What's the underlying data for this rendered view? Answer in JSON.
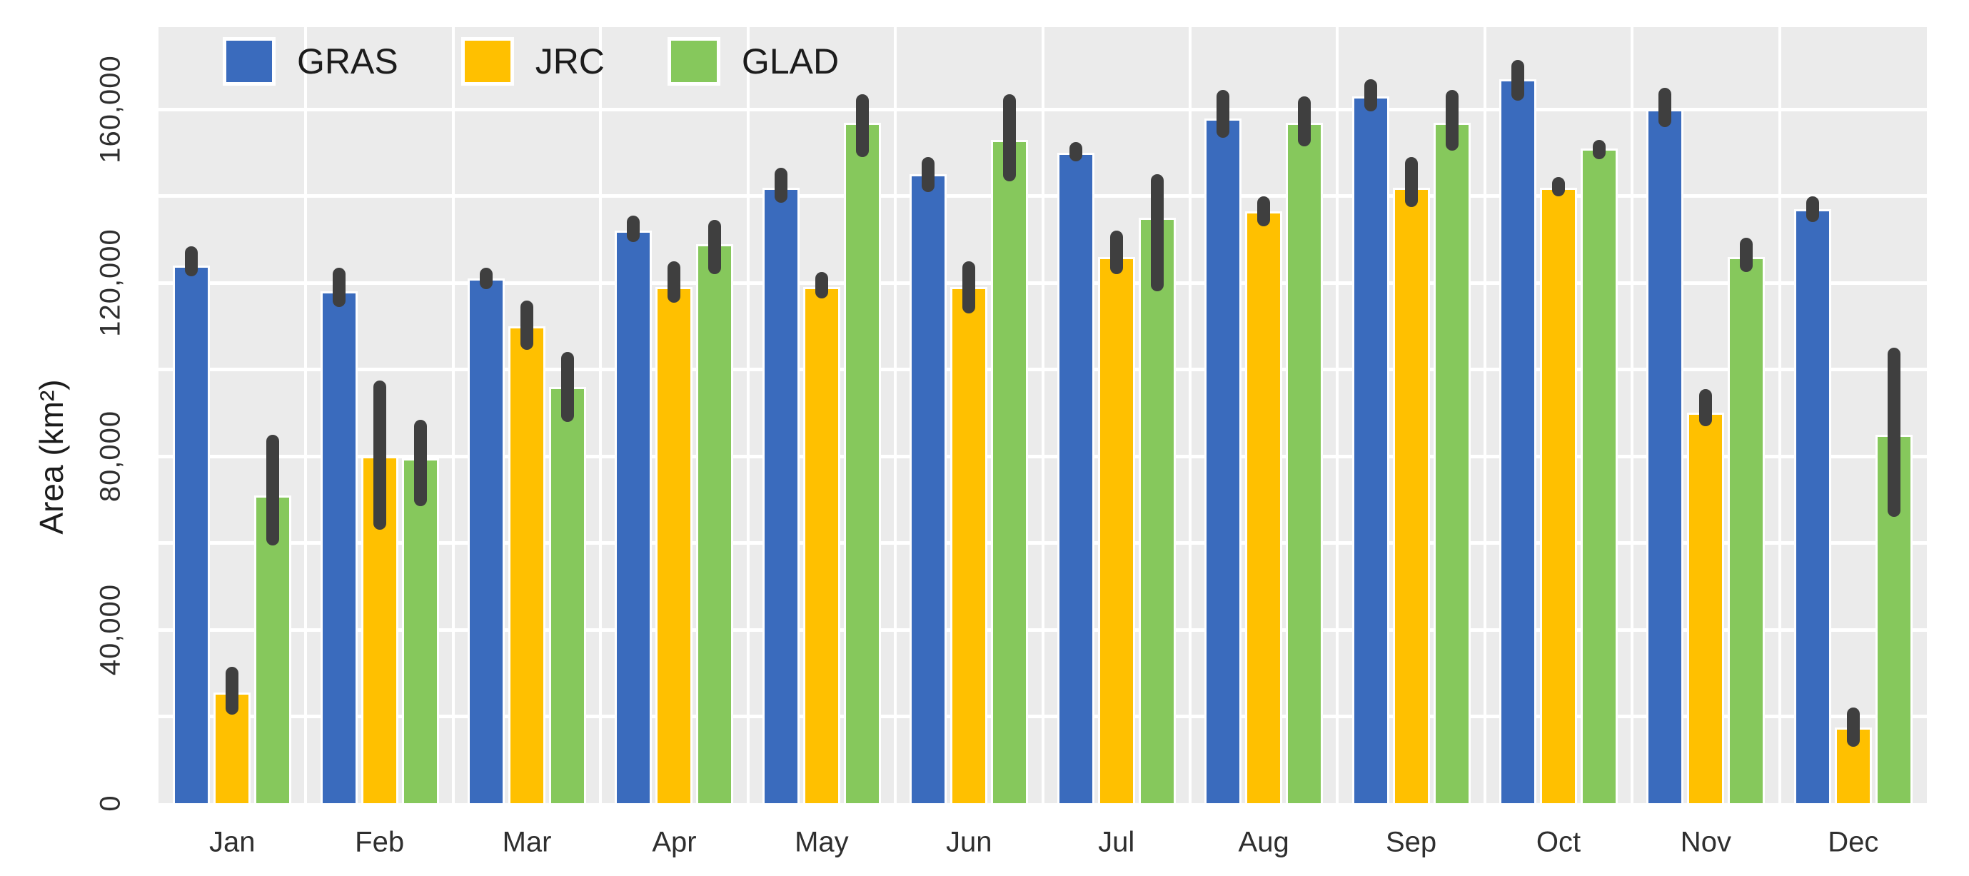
{
  "figure": {
    "background": "#ffffff",
    "plot_background": "#ebebeb",
    "gridline_color": "#ffffff",
    "error_bar_color": "#3f3f3f",
    "tick_text_color": "#2f2f2f"
  },
  "chart_data": {
    "type": "bar",
    "title": "",
    "xlabel": "",
    "ylabel": "Area (km²)",
    "categories": [
      "Jan",
      "Feb",
      "Mar",
      "Apr",
      "May",
      "Jun",
      "Jul",
      "Aug",
      "Sep",
      "Oct",
      "Nov",
      "Dec"
    ],
    "series": [
      {
        "name": "GRAS",
        "color": "#3a6bbd",
        "values": [
          124000,
          118000,
          121000,
          132000,
          142000,
          145000,
          150000,
          158000,
          163000,
          167000,
          160000,
          137000
        ],
        "error_low": [
          121500,
          114500,
          118500,
          129500,
          138500,
          141000,
          148000,
          153500,
          159500,
          162000,
          156000,
          134000
        ],
        "error_high": [
          128500,
          123500,
          123500,
          135500,
          146500,
          149000,
          152500,
          164500,
          167000,
          171500,
          165000,
          140000
        ]
      },
      {
        "name": "JRC",
        "color": "#ffc000",
        "values": [
          25500,
          80000,
          110000,
          119000,
          119000,
          119000,
          126000,
          136500,
          142000,
          142000,
          90000,
          17500
        ],
        "error_low": [
          20500,
          63000,
          104500,
          115500,
          116500,
          113000,
          122000,
          133000,
          137500,
          140000,
          87000,
          13000
        ],
        "error_high": [
          31500,
          97500,
          116000,
          125000,
          122500,
          125000,
          132000,
          140000,
          149000,
          144500,
          95500,
          22000
        ]
      },
      {
        "name": "GLAD",
        "color": "#86c85c",
        "values": [
          71000,
          79500,
          96000,
          129000,
          157000,
          153000,
          135000,
          157000,
          157000,
          151000,
          126000,
          85000
        ],
        "error_low": [
          59500,
          68500,
          88000,
          122000,
          149000,
          143500,
          118000,
          151500,
          150500,
          148500,
          122500,
          66000
        ],
        "error_high": [
          85000,
          88500,
          104000,
          134500,
          163500,
          163500,
          145000,
          163000,
          164500,
          153000,
          130500,
          105000
        ]
      }
    ],
    "y_ticks": [
      {
        "value": 0,
        "label": "0"
      },
      {
        "value": 40000,
        "label": "40,000"
      },
      {
        "value": 80000,
        "label": "80,000"
      },
      {
        "value": 120000,
        "label": "120,000"
      },
      {
        "value": 160000,
        "label": "160,000"
      }
    ],
    "ylim": [
      0,
      179000
    ],
    "gridline_step": 20000,
    "grid": true,
    "legend_position": "top-left"
  }
}
